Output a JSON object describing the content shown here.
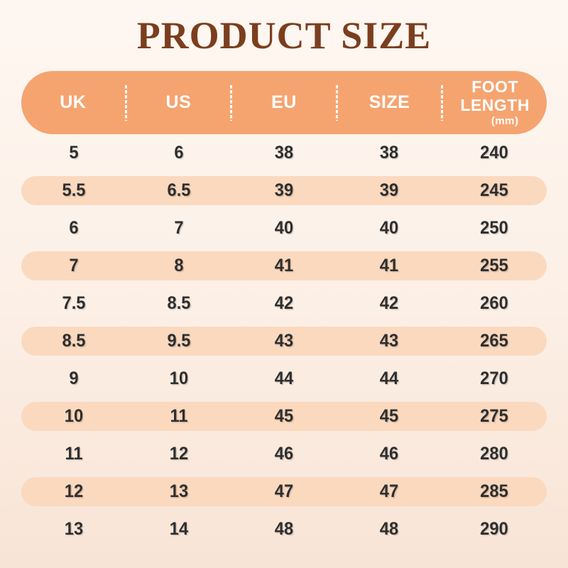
{
  "title": "PRODUCT SIZE",
  "chart_data": {
    "type": "table",
    "title": "PRODUCT SIZE",
    "columns": [
      {
        "label": "UK"
      },
      {
        "label": "US"
      },
      {
        "label": "EU"
      },
      {
        "label": "SIZE"
      },
      {
        "label": "FOOT LENGTH",
        "lines": [
          "FOOT",
          "LENGTH"
        ],
        "unit": "(mm)"
      }
    ],
    "rows": [
      [
        5,
        6,
        38,
        38,
        240
      ],
      [
        5.5,
        6.5,
        39,
        39,
        245
      ],
      [
        6,
        7,
        40,
        40,
        250
      ],
      [
        7,
        8,
        41,
        41,
        255
      ],
      [
        7.5,
        8.5,
        42,
        42,
        260
      ],
      [
        8.5,
        9.5,
        43,
        43,
        265
      ],
      [
        9,
        10,
        44,
        44,
        270
      ],
      [
        10,
        11,
        45,
        45,
        275
      ],
      [
        11,
        12,
        46,
        46,
        280
      ],
      [
        12,
        13,
        47,
        47,
        285
      ],
      [
        13,
        14,
        48,
        48,
        290
      ]
    ]
  },
  "colors": {
    "background_top": "#FEF7F1",
    "background_bottom": "#F8E4D6",
    "header_bg": "#F5A470",
    "header_text": "#FFFFFF",
    "row_alt_bg": "#FBD9BE",
    "title_text": "#7B3E1E",
    "cell_text": "#2E2E2E"
  }
}
